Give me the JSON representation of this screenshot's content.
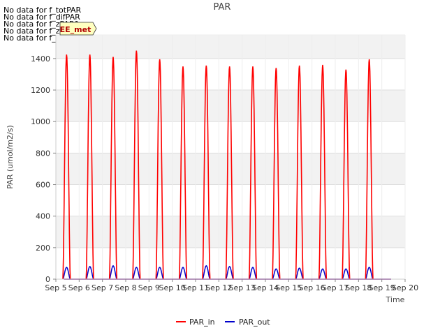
{
  "notices": [
    "No data for f_totPAR",
    "No data for f_difPAR",
    "No data for f_zPAR1",
    "No data for f_zPAR2",
    "No data for f_zPAR3"
  ],
  "badge": {
    "label": "EE_met"
  },
  "chart_data": {
    "type": "line",
    "title": "PAR",
    "xlabel": "Time",
    "ylabel": "PAR (umol/m2/s)",
    "xlim": [
      "2024-09-05",
      "2024-09-20"
    ],
    "ylim": [
      0,
      1550
    ],
    "x_tick_labels": [
      "Sep 5",
      "Sep 6",
      "Sep 7",
      "Sep 8",
      "Sep 9",
      "Sep 10",
      "Sep 11",
      "Sep 12",
      "Sep 13",
      "Sep 14",
      "Sep 15",
      "Sep 16",
      "Sep 17",
      "Sep 18",
      "Sep 19",
      "Sep 20"
    ],
    "y_ticks": [
      0,
      200,
      400,
      600,
      800,
      1000,
      1200,
      1400
    ],
    "grid": true,
    "legend_position": "bottom-center",
    "series": [
      {
        "name": "PAR_in",
        "color": "#ff0000",
        "daily_peak": [
          {
            "date": "Sep 5",
            "peak": 1425
          },
          {
            "date": "Sep 6",
            "peak": 1425
          },
          {
            "date": "Sep 7",
            "peak": 1410
          },
          {
            "date": "Sep 8",
            "peak": 1450
          },
          {
            "date": "Sep 9",
            "peak": 1395
          },
          {
            "date": "Sep 10",
            "peak": 1350
          },
          {
            "date": "Sep 11",
            "peak": 1355
          },
          {
            "date": "Sep 12",
            "peak": 1350
          },
          {
            "date": "Sep 13",
            "peak": 1350
          },
          {
            "date": "Sep 14",
            "peak": 1340
          },
          {
            "date": "Sep 15",
            "peak": 1355
          },
          {
            "date": "Sep 16",
            "peak": 1360
          },
          {
            "date": "Sep 17",
            "peak": 1330
          },
          {
            "date": "Sep 18",
            "peak": 1395
          }
        ]
      },
      {
        "name": "PAR_out",
        "color": "#0000cc",
        "daily_peak": [
          {
            "date": "Sep 5",
            "peak": 75
          },
          {
            "date": "Sep 6",
            "peak": 80
          },
          {
            "date": "Sep 7",
            "peak": 85
          },
          {
            "date": "Sep 8",
            "peak": 75
          },
          {
            "date": "Sep 9",
            "peak": 75
          },
          {
            "date": "Sep 10",
            "peak": 75
          },
          {
            "date": "Sep 11",
            "peak": 85
          },
          {
            "date": "Sep 12",
            "peak": 80
          },
          {
            "date": "Sep 13",
            "peak": 75
          },
          {
            "date": "Sep 14",
            "peak": 65
          },
          {
            "date": "Sep 15",
            "peak": 70
          },
          {
            "date": "Sep 16",
            "peak": 65
          },
          {
            "date": "Sep 17",
            "peak": 65
          },
          {
            "date": "Sep 18",
            "peak": 75
          }
        ]
      }
    ]
  }
}
